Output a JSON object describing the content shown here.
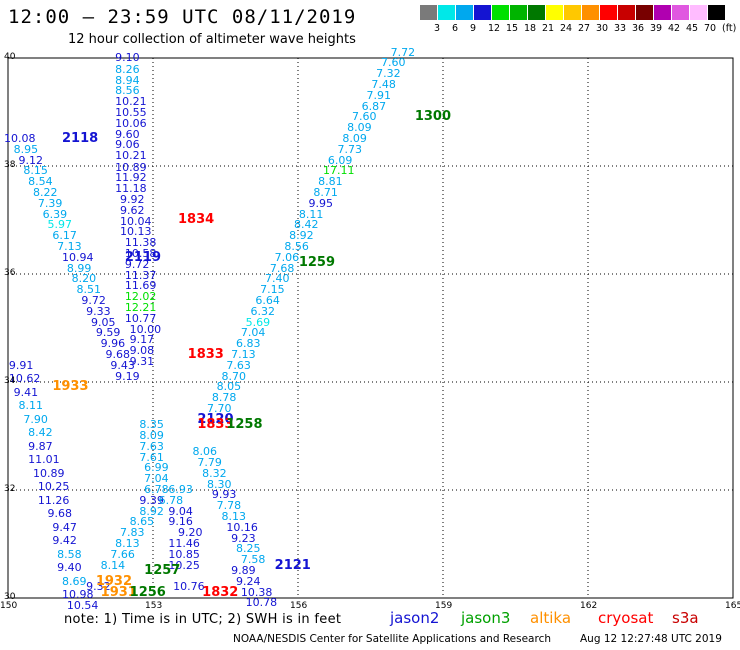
{
  "title": "12:00 – 23:59 UTC 08/11/2019",
  "subtitle": "12 hour collection of altimeter wave heights",
  "colors": {
    "c3": "#7a7a7a",
    "c6": "#00e8e8",
    "c9": "#00a8ee",
    "c12": "#1414d2",
    "c15": "#00e000",
    "c18": "#00b400",
    "c21": "#007800",
    "c24": "#ffff00",
    "c27": "#ffc800",
    "c30": "#ff9000",
    "c33": "#ff0000",
    "c36": "#c80000",
    "c39": "#780000",
    "c42": "#b000b0",
    "c45": "#e058e0",
    "c70": "#ffbcff",
    "c99": "#000000"
  },
  "scale": {
    "colors": [
      "#7a7a7a",
      "#00e8e8",
      "#00a8ee",
      "#1414d2",
      "#00e000",
      "#00b400",
      "#007800",
      "#ffff00",
      "#ffc800",
      "#ff9000",
      "#ff0000",
      "#c80000",
      "#780000",
      "#b000b0",
      "#e058e0",
      "#ffbcff",
      "#000000"
    ],
    "labels": [
      "3",
      "6",
      "9",
      "12",
      "15",
      "18",
      "21",
      "24",
      "27",
      "30",
      "33",
      "36",
      "39",
      "42",
      "45",
      "70",
      "(ft)"
    ]
  },
  "x_ticks": [
    "150",
    "153",
    "156",
    "159",
    "162",
    "165"
  ],
  "y_ticks": [
    "40",
    "38",
    "36",
    "34",
    "32",
    "30"
  ],
  "note": "note:  1) Time is in UTC;  2) SWH is in feet",
  "legend": [
    {
      "name": "jason2",
      "color": "#1414d2"
    },
    {
      "name": "jason3",
      "color": "#00a000"
    },
    {
      "name": "altika",
      "color": "#ff9000"
    },
    {
      "name": "cryosat",
      "color": "#ff0000"
    },
    {
      "name": "s3a",
      "color": "#c80000"
    }
  ],
  "credit": "NOAA/NESDIS Center for Satellite Applications and Research",
  "timestamp": "Aug 12 12:27:48 UTC 2019",
  "chart_data": {
    "type": "scatter",
    "xlim": [
      150,
      165
    ],
    "ylim": [
      30,
      40
    ],
    "x_ticks": [
      150,
      153,
      156,
      159,
      162,
      165
    ],
    "y_ticks": [
      30,
      32,
      34,
      36,
      38,
      40
    ],
    "grid": true,
    "track_labels": [
      {
        "text": "2118",
        "lon": 151.2,
        "lat": 38.5,
        "color": "c12"
      },
      {
        "text": "2119",
        "lon": 152.5,
        "lat": 36.3,
        "color": "c12"
      },
      {
        "text": "1834",
        "lon": 153.6,
        "lat": 37.0,
        "color": "c33"
      },
      {
        "text": "1300",
        "lon": 158.5,
        "lat": 38.9,
        "color": "c21"
      },
      {
        "text": "1259",
        "lon": 156.1,
        "lat": 36.2,
        "color": "c21"
      },
      {
        "text": "1833",
        "lon": 153.8,
        "lat": 34.5,
        "color": "c33"
      },
      {
        "text": "1933",
        "lon": 151.0,
        "lat": 33.9,
        "color": "c30"
      },
      {
        "text": "2120",
        "lon": 154.0,
        "lat": 33.3,
        "color": "c12"
      },
      {
        "text": "1833",
        "lon": 154.0,
        "lat": 33.2,
        "color": "c33"
      },
      {
        "text": "1258",
        "lon": 154.6,
        "lat": 33.2,
        "color": "c21"
      },
      {
        "text": "2121",
        "lon": 155.6,
        "lat": 30.6,
        "color": "c12"
      },
      {
        "text": "1832",
        "lon": 154.1,
        "lat": 30.1,
        "color": "c33"
      },
      {
        "text": "1257",
        "lon": 152.9,
        "lat": 30.5,
        "color": "c21"
      },
      {
        "text": "1932",
        "lon": 151.9,
        "lat": 30.3,
        "color": "c30"
      },
      {
        "text": "1931",
        "lon": 152.0,
        "lat": 30.1,
        "color": "c30"
      },
      {
        "text": "1256",
        "lon": 152.6,
        "lat": 30.1,
        "color": "c21"
      }
    ],
    "points": [
      {
        "v": "9.10",
        "lon": 152.3,
        "lat": 40.0,
        "c": "c12"
      },
      {
        "v": "8.26",
        "lon": 152.3,
        "lat": 39.78,
        "c": "c9"
      },
      {
        "v": "8.94",
        "lon": 152.3,
        "lat": 39.58,
        "c": "c9"
      },
      {
        "v": "8.56",
        "lon": 152.3,
        "lat": 39.38,
        "c": "c9"
      },
      {
        "v": "10.21",
        "lon": 152.3,
        "lat": 39.18,
        "c": "c12"
      },
      {
        "v": "10.55",
        "lon": 152.3,
        "lat": 38.98,
        "c": "c12"
      },
      {
        "v": "10.06",
        "lon": 152.3,
        "lat": 38.78,
        "c": "c12"
      },
      {
        "v": "9.60",
        "lon": 152.3,
        "lat": 38.58,
        "c": "c12"
      },
      {
        "v": "9.06",
        "lon": 152.3,
        "lat": 38.38,
        "c": "c12"
      },
      {
        "v": "10.21",
        "lon": 152.3,
        "lat": 38.18,
        "c": "c12"
      },
      {
        "v": "10.89",
        "lon": 152.3,
        "lat": 37.97,
        "c": "c12"
      },
      {
        "v": "11.92",
        "lon": 152.3,
        "lat": 37.77,
        "c": "c12"
      },
      {
        "v": "11.18",
        "lon": 152.3,
        "lat": 37.57,
        "c": "c12"
      },
      {
        "v": "9.92",
        "lon": 152.4,
        "lat": 37.37,
        "c": "c12"
      },
      {
        "v": "9.62",
        "lon": 152.4,
        "lat": 37.17,
        "c": "c12"
      },
      {
        "v": "10.04",
        "lon": 152.4,
        "lat": 36.97,
        "c": "c12"
      },
      {
        "v": "10.13",
        "lon": 152.4,
        "lat": 36.77,
        "c": "c12"
      },
      {
        "v": "11.38",
        "lon": 152.5,
        "lat": 36.57,
        "c": "c12"
      },
      {
        "v": "10.58",
        "lon": 152.5,
        "lat": 36.37,
        "c": "c12"
      },
      {
        "v": "9.72",
        "lon": 152.5,
        "lat": 36.17,
        "c": "c12"
      },
      {
        "v": "11.37",
        "lon": 152.5,
        "lat": 35.97,
        "c": "c12"
      },
      {
        "v": "11.69",
        "lon": 152.5,
        "lat": 35.77,
        "c": "c12"
      },
      {
        "v": "12.02",
        "lon": 152.5,
        "lat": 35.57,
        "c": "c15"
      },
      {
        "v": "12.21",
        "lon": 152.5,
        "lat": 35.37,
        "c": "c15"
      },
      {
        "v": "10.77",
        "lon": 152.5,
        "lat": 35.17,
        "c": "c12"
      },
      {
        "v": "10.00",
        "lon": 152.6,
        "lat": 34.97,
        "c": "c12"
      },
      {
        "v": "9.17",
        "lon": 152.6,
        "lat": 34.77,
        "c": "c12"
      },
      {
        "v": "9.08",
        "lon": 152.6,
        "lat": 34.57,
        "c": "c12"
      },
      {
        "v": "9.31",
        "lon": 152.6,
        "lat": 34.37,
        "c": "c12"
      },
      {
        "v": "10.08",
        "lon": 150.0,
        "lat": 38.5,
        "c": "c12"
      },
      {
        "v": "8.95",
        "lon": 150.2,
        "lat": 38.3,
        "c": "c9"
      },
      {
        "v": "9.12",
        "lon": 150.3,
        "lat": 38.1,
        "c": "c12"
      },
      {
        "v": "8.15",
        "lon": 150.4,
        "lat": 37.9,
        "c": "c9"
      },
      {
        "v": "8.54",
        "lon": 150.5,
        "lat": 37.7,
        "c": "c9"
      },
      {
        "v": "8.22",
        "lon": 150.6,
        "lat": 37.5,
        "c": "c9"
      },
      {
        "v": "7.39",
        "lon": 150.7,
        "lat": 37.3,
        "c": "c9"
      },
      {
        "v": "6.39",
        "lon": 150.8,
        "lat": 37.1,
        "c": "c9"
      },
      {
        "v": "5.97",
        "lon": 150.9,
        "lat": 36.9,
        "c": "c6"
      },
      {
        "v": "6.17",
        "lon": 151.0,
        "lat": 36.7,
        "c": "c9"
      },
      {
        "v": "7.13",
        "lon": 151.1,
        "lat": 36.5,
        "c": "c9"
      },
      {
        "v": "10.94",
        "lon": 151.2,
        "lat": 36.3,
        "c": "c12"
      },
      {
        "v": "8.99",
        "lon": 151.3,
        "lat": 36.1,
        "c": "c9"
      },
      {
        "v": "8.20",
        "lon": 151.4,
        "lat": 35.9,
        "c": "c9"
      },
      {
        "v": "8.51",
        "lon": 151.5,
        "lat": 35.7,
        "c": "c9"
      },
      {
        "v": "9.72",
        "lon": 151.6,
        "lat": 35.5,
        "c": "c12"
      },
      {
        "v": "9.33",
        "lon": 151.7,
        "lat": 35.3,
        "c": "c12"
      },
      {
        "v": "9.05",
        "lon": 151.8,
        "lat": 35.1,
        "c": "c12"
      },
      {
        "v": "9.59",
        "lon": 151.9,
        "lat": 34.9,
        "c": "c12"
      },
      {
        "v": "9.96",
        "lon": 152.0,
        "lat": 34.7,
        "c": "c12"
      },
      {
        "v": "9.68",
        "lon": 152.1,
        "lat": 34.5,
        "c": "c12"
      },
      {
        "v": "9.43",
        "lon": 152.2,
        "lat": 34.3,
        "c": "c12"
      },
      {
        "v": "9.19",
        "lon": 152.3,
        "lat": 34.1,
        "c": "c12"
      },
      {
        "v": "7.72",
        "lon": 158.0,
        "lat": 40.1,
        "c": "c9"
      },
      {
        "v": "7.60",
        "lon": 157.8,
        "lat": 39.9,
        "c": "c9"
      },
      {
        "v": "7.32",
        "lon": 157.7,
        "lat": 39.7,
        "c": "c9"
      },
      {
        "v": "7.48",
        "lon": 157.6,
        "lat": 39.5,
        "c": "c9"
      },
      {
        "v": "7.91",
        "lon": 157.5,
        "lat": 39.3,
        "c": "c9"
      },
      {
        "v": "6.87",
        "lon": 157.4,
        "lat": 39.1,
        "c": "c9"
      },
      {
        "v": "7.60",
        "lon": 157.2,
        "lat": 38.9,
        "c": "c9"
      },
      {
        "v": "8.09",
        "lon": 157.1,
        "lat": 38.7,
        "c": "c9"
      },
      {
        "v": "8.09",
        "lon": 157.0,
        "lat": 38.5,
        "c": "c9"
      },
      {
        "v": "7.73",
        "lon": 156.9,
        "lat": 38.3,
        "c": "c9"
      },
      {
        "v": "6.09",
        "lon": 156.7,
        "lat": 38.1,
        "c": "c9"
      },
      {
        "v": "17.11",
        "lon": 156.6,
        "lat": 37.9,
        "c": "c15"
      },
      {
        "v": "8.81",
        "lon": 156.5,
        "lat": 37.7,
        "c": "c9"
      },
      {
        "v": "8.71",
        "lon": 156.4,
        "lat": 37.5,
        "c": "c9"
      },
      {
        "v": "9.95",
        "lon": 156.3,
        "lat": 37.3,
        "c": "c12"
      },
      {
        "v": "8.11",
        "lon": 156.1,
        "lat": 37.1,
        "c": "c9"
      },
      {
        "v": "8.42",
        "lon": 156.0,
        "lat": 36.9,
        "c": "c9"
      },
      {
        "v": "8.92",
        "lon": 155.9,
        "lat": 36.7,
        "c": "c9"
      },
      {
        "v": "8.56",
        "lon": 155.8,
        "lat": 36.5,
        "c": "c9"
      },
      {
        "v": "7.06",
        "lon": 155.6,
        "lat": 36.3,
        "c": "c9"
      },
      {
        "v": "7.68",
        "lon": 155.5,
        "lat": 36.1,
        "c": "c9"
      },
      {
        "v": "7.40",
        "lon": 155.4,
        "lat": 35.9,
        "c": "c9"
      },
      {
        "v": "7.15",
        "lon": 155.3,
        "lat": 35.7,
        "c": "c9"
      },
      {
        "v": "6.64",
        "lon": 155.2,
        "lat": 35.5,
        "c": "c9"
      },
      {
        "v": "6.32",
        "lon": 155.1,
        "lat": 35.3,
        "c": "c9"
      },
      {
        "v": "5.69",
        "lon": 155.0,
        "lat": 35.1,
        "c": "c6"
      },
      {
        "v": "7.04",
        "lon": 154.9,
        "lat": 34.9,
        "c": "c9"
      },
      {
        "v": "6.83",
        "lon": 154.8,
        "lat": 34.7,
        "c": "c9"
      },
      {
        "v": "7.13",
        "lon": 154.7,
        "lat": 34.5,
        "c": "c9"
      },
      {
        "v": "7.63",
        "lon": 154.6,
        "lat": 34.3,
        "c": "c9"
      },
      {
        "v": "8.70",
        "lon": 154.5,
        "lat": 34.1,
        "c": "c9"
      },
      {
        "v": "8.05",
        "lon": 154.4,
        "lat": 33.9,
        "c": "c9"
      },
      {
        "v": "8.78",
        "lon": 154.3,
        "lat": 33.7,
        "c": "c9"
      },
      {
        "v": "7.70",
        "lon": 154.2,
        "lat": 33.5,
        "c": "c9"
      },
      {
        "v": "9.91",
        "lon": 150.1,
        "lat": 34.3,
        "c": "c12"
      },
      {
        "v": "10.62",
        "lon": 150.1,
        "lat": 34.05,
        "c": "c12"
      },
      {
        "v": "9.41",
        "lon": 150.2,
        "lat": 33.8,
        "c": "c12"
      },
      {
        "v": "8.11",
        "lon": 150.3,
        "lat": 33.55,
        "c": "c9"
      },
      {
        "v": "7.90",
        "lon": 150.4,
        "lat": 33.3,
        "c": "c9"
      },
      {
        "v": "8.42",
        "lon": 150.5,
        "lat": 33.05,
        "c": "c9"
      },
      {
        "v": "9.87",
        "lon": 150.5,
        "lat": 32.8,
        "c": "c12"
      },
      {
        "v": "11.01",
        "lon": 150.5,
        "lat": 32.55,
        "c": "c12"
      },
      {
        "v": "10.89",
        "lon": 150.6,
        "lat": 32.3,
        "c": "c12"
      },
      {
        "v": "10.25",
        "lon": 150.7,
        "lat": 32.05,
        "c": "c12"
      },
      {
        "v": "11.26",
        "lon": 150.7,
        "lat": 31.8,
        "c": "c12"
      },
      {
        "v": "9.68",
        "lon": 150.9,
        "lat": 31.55,
        "c": "c12"
      },
      {
        "v": "9.47",
        "lon": 151.0,
        "lat": 31.3,
        "c": "c12"
      },
      {
        "v": "9.42",
        "lon": 151.0,
        "lat": 31.05,
        "c": "c12"
      },
      {
        "v": "8.58",
        "lon": 151.1,
        "lat": 30.8,
        "c": "c9"
      },
      {
        "v": "9.40",
        "lon": 151.1,
        "lat": 30.55,
        "c": "c12"
      },
      {
        "v": "8.69",
        "lon": 151.2,
        "lat": 30.3,
        "c": "c9"
      },
      {
        "v": "10.98",
        "lon": 151.2,
        "lat": 30.05,
        "c": "c12"
      },
      {
        "v": "10.54",
        "lon": 151.3,
        "lat": 29.85,
        "c": "c12"
      },
      {
        "v": "8.35",
        "lon": 152.8,
        "lat": 33.2,
        "c": "c9"
      },
      {
        "v": "8.09",
        "lon": 152.8,
        "lat": 33.0,
        "c": "c9"
      },
      {
        "v": "7.63",
        "lon": 152.8,
        "lat": 32.8,
        "c": "c9"
      },
      {
        "v": "7.61",
        "lon": 152.8,
        "lat": 32.6,
        "c": "c9"
      },
      {
        "v": "6.99",
        "lon": 152.9,
        "lat": 32.4,
        "c": "c9"
      },
      {
        "v": "7.04",
        "lon": 152.9,
        "lat": 32.2,
        "c": "c9"
      },
      {
        "v": "6.78",
        "lon": 152.9,
        "lat": 32.0,
        "c": "c9"
      },
      {
        "v": "6.93",
        "lon": 153.4,
        "lat": 32.0,
        "c": "c9"
      },
      {
        "v": "9.39",
        "lon": 152.8,
        "lat": 31.8,
        "c": "c12"
      },
      {
        "v": "6.78",
        "lon": 153.2,
        "lat": 31.8,
        "c": "c9"
      },
      {
        "v": "8.92",
        "lon": 152.8,
        "lat": 31.6,
        "c": "c9"
      },
      {
        "v": "9.04",
        "lon": 153.4,
        "lat": 31.6,
        "c": "c12"
      },
      {
        "v": "8.65",
        "lon": 152.6,
        "lat": 31.4,
        "c": "c9"
      },
      {
        "v": "9.16",
        "lon": 153.4,
        "lat": 31.4,
        "c": "c12"
      },
      {
        "v": "7.83",
        "lon": 152.4,
        "lat": 31.2,
        "c": "c9"
      },
      {
        "v": "9.20",
        "lon": 153.6,
        "lat": 31.2,
        "c": "c12"
      },
      {
        "v": "8.13",
        "lon": 152.3,
        "lat": 31.0,
        "c": "c9"
      },
      {
        "v": "11.46",
        "lon": 153.4,
        "lat": 31.0,
        "c": "c12"
      },
      {
        "v": "7.66",
        "lon": 152.2,
        "lat": 30.8,
        "c": "c9"
      },
      {
        "v": "10.85",
        "lon": 153.4,
        "lat": 30.8,
        "c": "c12"
      },
      {
        "v": "8.14",
        "lon": 152.0,
        "lat": 30.6,
        "c": "c9"
      },
      {
        "v": "10.25",
        "lon": 153.4,
        "lat": 30.6,
        "c": "c12"
      },
      {
        "v": "9.32",
        "lon": 151.7,
        "lat": 30.2,
        "c": "c12"
      },
      {
        "v": "10.76",
        "lon": 153.5,
        "lat": 30.2,
        "c": "c12"
      },
      {
        "v": "8.06",
        "lon": 153.9,
        "lat": 32.7,
        "c": "c9"
      },
      {
        "v": "7.79",
        "lon": 154.0,
        "lat": 32.5,
        "c": "c9"
      },
      {
        "v": "8.32",
        "lon": 154.1,
        "lat": 32.3,
        "c": "c9"
      },
      {
        "v": "8.30",
        "lon": 154.2,
        "lat": 32.1,
        "c": "c9"
      },
      {
        "v": "9.93",
        "lon": 154.3,
        "lat": 31.9,
        "c": "c12"
      },
      {
        "v": "7.78",
        "lon": 154.4,
        "lat": 31.7,
        "c": "c9"
      },
      {
        "v": "8.13",
        "lon": 154.5,
        "lat": 31.5,
        "c": "c9"
      },
      {
        "v": "10.16",
        "lon": 154.6,
        "lat": 31.3,
        "c": "c12"
      },
      {
        "v": "9.23",
        "lon": 154.7,
        "lat": 31.1,
        "c": "c12"
      },
      {
        "v": "8.25",
        "lon": 154.8,
        "lat": 30.9,
        "c": "c9"
      },
      {
        "v": "7.58",
        "lon": 154.9,
        "lat": 30.7,
        "c": "c9"
      },
      {
        "v": "9.89",
        "lon": 154.7,
        "lat": 30.5,
        "c": "c12"
      },
      {
        "v": "9.24",
        "lon": 154.8,
        "lat": 30.3,
        "c": "c12"
      },
      {
        "v": "10.38",
        "lon": 154.9,
        "lat": 30.1,
        "c": "c12"
      },
      {
        "v": "10.78",
        "lon": 155.0,
        "lat": 29.9,
        "c": "c12"
      }
    ]
  }
}
